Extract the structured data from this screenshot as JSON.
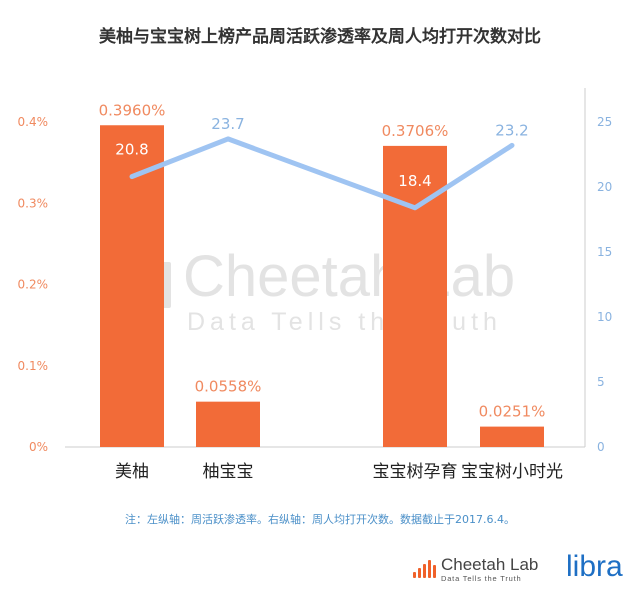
{
  "title": "美柚与宝宝树上榜产品周活跃渗透率及周人均打开次数对比",
  "watermark": {
    "name": "Cheetah Lab",
    "tagline": "Data Tells the Truth"
  },
  "footnote": "注：左纵轴：周活跃渗透率。右纵轴：周人均打开次数。数据截止于2017.6.4。",
  "footer": {
    "logo_name": "Cheetah Lab",
    "logo_tagline": "Data Tells the Truth",
    "brand": "libra"
  },
  "colors": {
    "bar": "#f26b38",
    "line": "#9fc4f2",
    "left_axis": "#f08a60",
    "right_axis": "#8ab3e0",
    "watermark": "#e3e3e3"
  },
  "chart_data": {
    "type": "bar",
    "categories": [
      "美柚",
      "柚宝宝",
      "宝宝树孕育",
      "宝宝树小时光"
    ],
    "series": [
      {
        "type": "bar",
        "axis": "left",
        "values": [
          0.396,
          0.0558,
          0.3706,
          0.0251
        ],
        "labels": [
          "0.3960%",
          "0.0558%",
          "0.3706%",
          "0.0251%"
        ]
      },
      {
        "type": "line",
        "axis": "right",
        "values": [
          20.8,
          23.7,
          18.4,
          23.2
        ],
        "labels": [
          "20.8",
          "23.7",
          "18.4",
          "23.2"
        ]
      }
    ],
    "y_left": {
      "range": [
        0,
        0.4
      ],
      "ticks": [
        "0%",
        "0.1%",
        "0.2%",
        "0.3%",
        "0.4%"
      ]
    },
    "y_right": {
      "range": [
        0,
        25
      ],
      "ticks": [
        "0",
        "5",
        "10",
        "15",
        "20",
        "25"
      ]
    },
    "grid": false,
    "legend": "none"
  }
}
